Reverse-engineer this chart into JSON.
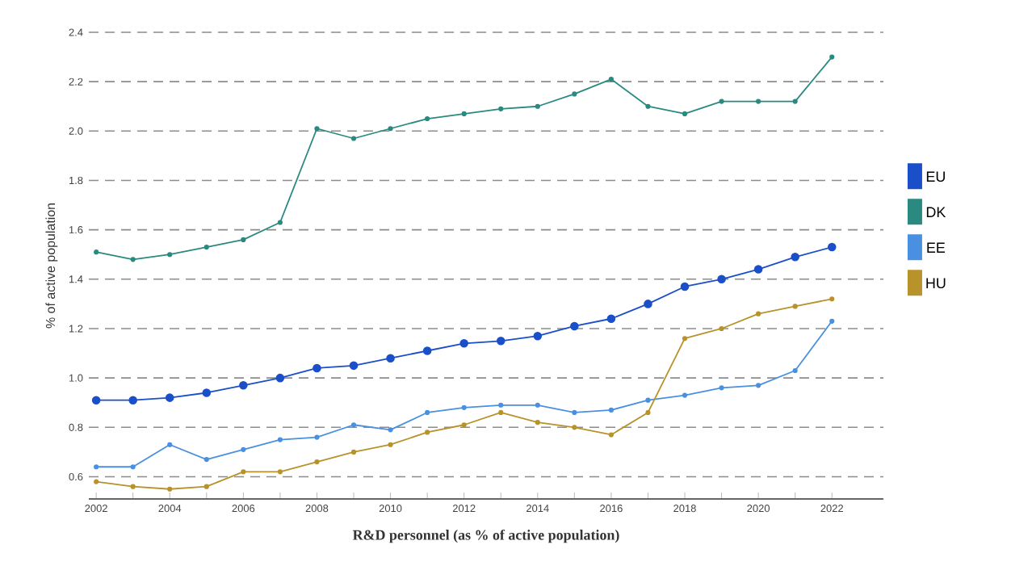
{
  "chart_data": {
    "type": "line",
    "xlabel": "R&D personnel (as % of active population)",
    "ylabel": "% of active population",
    "x": [
      2002,
      2003,
      2004,
      2005,
      2006,
      2007,
      2008,
      2009,
      2010,
      2011,
      2012,
      2013,
      2014,
      2015,
      2016,
      2017,
      2018,
      2019,
      2020,
      2021,
      2022
    ],
    "series": [
      {
        "name": "EU",
        "color": "#1a4fc9",
        "values": [
          0.91,
          0.91,
          0.92,
          0.94,
          0.97,
          1.0,
          1.04,
          1.05,
          1.08,
          1.11,
          1.14,
          1.15,
          1.17,
          1.21,
          1.24,
          1.3,
          1.37,
          1.4,
          1.44,
          1.49,
          1.53
        ]
      },
      {
        "name": "DK",
        "color": "#2a8a80",
        "values": [
          1.51,
          1.48,
          1.5,
          1.53,
          1.56,
          1.63,
          2.01,
          1.97,
          2.01,
          2.05,
          2.07,
          2.09,
          2.1,
          2.15,
          2.21,
          2.1,
          2.07,
          2.12,
          2.12,
          2.12,
          2.3
        ]
      },
      {
        "name": "EE",
        "color": "#4a90e0",
        "values": [
          0.64,
          0.64,
          0.73,
          0.67,
          0.71,
          0.75,
          0.76,
          0.81,
          0.79,
          0.86,
          0.88,
          0.89,
          0.89,
          0.86,
          0.87,
          0.91,
          0.93,
          0.96,
          0.97,
          1.03,
          1.23
        ]
      },
      {
        "name": "HU",
        "color": "#b8922a",
        "values": [
          0.58,
          0.56,
          0.55,
          0.56,
          0.62,
          0.62,
          0.66,
          0.7,
          0.73,
          0.78,
          0.81,
          0.86,
          0.82,
          0.8,
          0.77,
          0.86,
          1.16,
          1.2,
          1.26,
          1.29,
          1.32
        ]
      }
    ],
    "xlim": [
      2001.8,
      2023.4
    ],
    "ylim": [
      0.51,
      2.4
    ],
    "xticks": [
      2002,
      {
        "value": 2003,
        "label": null
      },
      2004,
      {
        "value": 2005,
        "label": null
      },
      2006,
      {
        "value": 2007,
        "label": null
      },
      2008,
      {
        "value": 2009,
        "label": null
      },
      2010,
      {
        "value": 2011,
        "label": null
      },
      2012,
      {
        "value": 2013,
        "label": null
      },
      2014,
      {
        "value": 2015,
        "label": null
      },
      2016,
      {
        "value": 2017,
        "label": null
      },
      2018,
      {
        "value": 2019,
        "label": null
      },
      2020,
      {
        "value": 2021,
        "label": null
      },
      2022
    ],
    "yticks": [
      0.6,
      0.8,
      {
        "value": 1,
        "label": "1.0"
      },
      1.2,
      1.4,
      1.6,
      1.8,
      {
        "value": 2,
        "label": "2.0"
      },
      2.2,
      2.4
    ],
    "grid": "y",
    "legend": "right",
    "marker": "circle",
    "line_style": "solid"
  }
}
